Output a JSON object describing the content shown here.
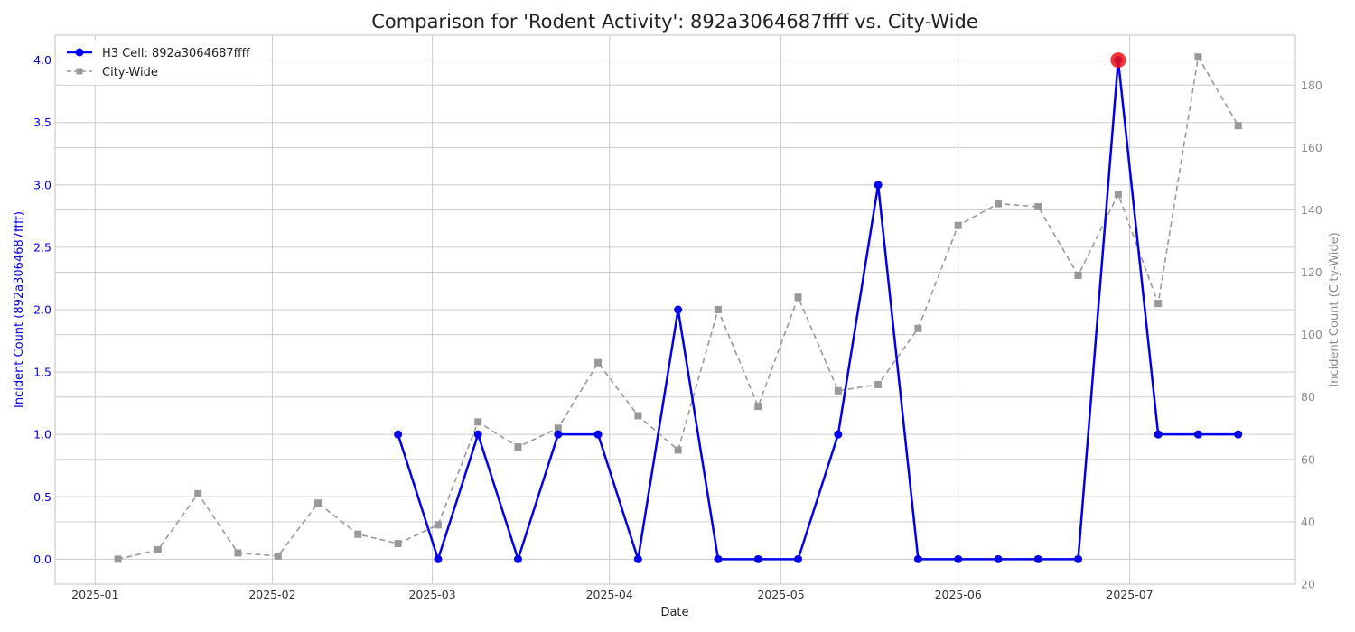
{
  "chart_data": {
    "type": "line",
    "title": "Comparison for 'Rodent Activity': 892a3064687ffff vs. City-Wide",
    "xlabel": "Date",
    "ylabel_left": "Incident Count (892a3064687ffff)",
    "ylabel_right": "Incident Count (City-Wide)",
    "ylim_left": [
      -0.2,
      4.2
    ],
    "ylim_right": [
      20,
      196
    ],
    "xlim": [
      "2024-12-25",
      "2025-07-30"
    ],
    "x_ticks": [
      {
        "date": "2025-01-01",
        "label": "2025-01"
      },
      {
        "date": "2025-02-01",
        "label": "2025-02"
      },
      {
        "date": "2025-03-01",
        "label": "2025-03"
      },
      {
        "date": "2025-04-01",
        "label": "2025-04"
      },
      {
        "date": "2025-05-01",
        "label": "2025-05"
      },
      {
        "date": "2025-06-01",
        "label": "2025-06"
      },
      {
        "date": "2025-07-01",
        "label": "2025-07"
      }
    ],
    "y_ticks_left": [
      "0.0",
      "0.5",
      "1.0",
      "1.5",
      "2.0",
      "2.5",
      "3.0",
      "3.5",
      "4.0"
    ],
    "y_ticks_right": [
      "20",
      "40",
      "60",
      "80",
      "100",
      "120",
      "140",
      "160",
      "180"
    ],
    "grid": true,
    "legend_position": "top-left",
    "series": [
      {
        "name": "H3 Cell: 892a3064687ffff",
        "axis": "left",
        "color": "#0000ee",
        "marker": "circle",
        "style": "solid",
        "points": [
          {
            "x": "2025-02-23",
            "y": 1
          },
          {
            "x": "2025-03-02",
            "y": 0
          },
          {
            "x": "2025-03-09",
            "y": 1
          },
          {
            "x": "2025-03-16",
            "y": 0
          },
          {
            "x": "2025-03-23",
            "y": 1
          },
          {
            "x": "2025-03-30",
            "y": 1
          },
          {
            "x": "2025-04-06",
            "y": 0
          },
          {
            "x": "2025-04-13",
            "y": 2
          },
          {
            "x": "2025-04-20",
            "y": 0
          },
          {
            "x": "2025-04-27",
            "y": 0
          },
          {
            "x": "2025-05-04",
            "y": 0
          },
          {
            "x": "2025-05-11",
            "y": 1
          },
          {
            "x": "2025-05-18",
            "y": 3
          },
          {
            "x": "2025-05-25",
            "y": 0
          },
          {
            "x": "2025-06-01",
            "y": 0
          },
          {
            "x": "2025-06-08",
            "y": 0
          },
          {
            "x": "2025-06-15",
            "y": 0
          },
          {
            "x": "2025-06-22",
            "y": 0
          },
          {
            "x": "2025-06-29",
            "y": 4
          },
          {
            "x": "2025-07-06",
            "y": 1
          },
          {
            "x": "2025-07-13",
            "y": 1
          },
          {
            "x": "2025-07-20",
            "y": 1
          }
        ]
      },
      {
        "name": "City-Wide",
        "axis": "right",
        "color": "#999999",
        "marker": "square",
        "style": "dashed",
        "points": [
          {
            "x": "2025-01-05",
            "y": 28
          },
          {
            "x": "2025-01-12",
            "y": 31
          },
          {
            "x": "2025-01-19",
            "y": 49
          },
          {
            "x": "2025-01-26",
            "y": 30
          },
          {
            "x": "2025-02-02",
            "y": 29
          },
          {
            "x": "2025-02-09",
            "y": 46
          },
          {
            "x": "2025-02-16",
            "y": 36
          },
          {
            "x": "2025-02-23",
            "y": 33
          },
          {
            "x": "2025-03-02",
            "y": 39
          },
          {
            "x": "2025-03-09",
            "y": 72
          },
          {
            "x": "2025-03-16",
            "y": 64
          },
          {
            "x": "2025-03-23",
            "y": 70
          },
          {
            "x": "2025-03-30",
            "y": 91
          },
          {
            "x": "2025-04-06",
            "y": 74
          },
          {
            "x": "2025-04-13",
            "y": 63
          },
          {
            "x": "2025-04-20",
            "y": 108
          },
          {
            "x": "2025-04-27",
            "y": 77
          },
          {
            "x": "2025-05-04",
            "y": 112
          },
          {
            "x": "2025-05-11",
            "y": 82
          },
          {
            "x": "2025-05-18",
            "y": 84
          },
          {
            "x": "2025-05-25",
            "y": 102
          },
          {
            "x": "2025-06-01",
            "y": 135
          },
          {
            "x": "2025-06-08",
            "y": 142
          },
          {
            "x": "2025-06-15",
            "y": 141
          },
          {
            "x": "2025-06-22",
            "y": 119
          },
          {
            "x": "2025-06-29",
            "y": 145
          },
          {
            "x": "2025-07-06",
            "y": 110
          },
          {
            "x": "2025-07-13",
            "y": 189
          },
          {
            "x": "2025-07-20",
            "y": 167
          }
        ]
      }
    ],
    "highlight": {
      "x": "2025-06-29",
      "y": 4,
      "axis": "left",
      "color": "#ee1111"
    },
    "colors": {
      "left_axis": "#0000ee",
      "right_axis": "#888888",
      "grid": "#cccccc",
      "spine": "#cccccc",
      "text": "#222222"
    }
  }
}
